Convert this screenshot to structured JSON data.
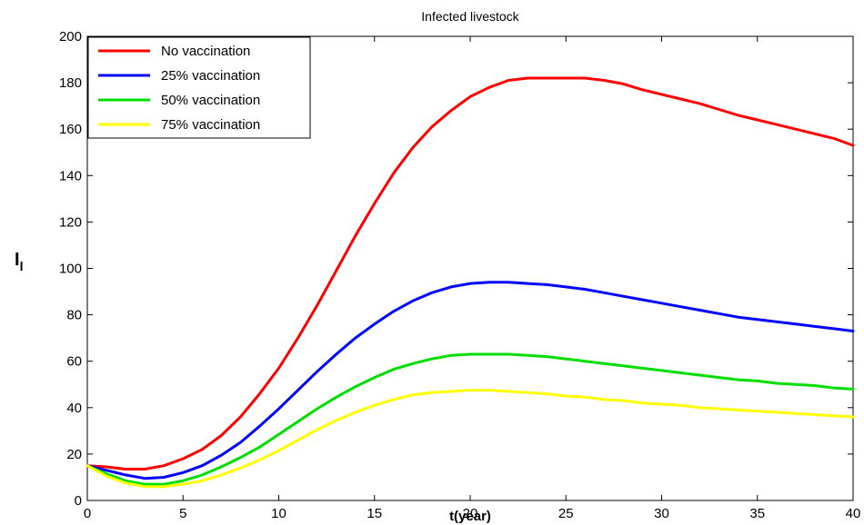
{
  "chart_data": {
    "type": "line",
    "title": "Infected livestock",
    "xlabel": "t(year)",
    "ylabel_main": "I",
    "ylabel_sub": "l",
    "xlim": [
      0,
      40
    ],
    "ylim": [
      0,
      200
    ],
    "xticks": [
      0,
      5,
      10,
      15,
      20,
      25,
      30,
      35,
      40
    ],
    "yticks": [
      0,
      20,
      40,
      60,
      80,
      100,
      120,
      140,
      160,
      180,
      200
    ],
    "grid": false,
    "legend_position": "top-left",
    "x": [
      0,
      1,
      2,
      3,
      4,
      5,
      6,
      7,
      8,
      9,
      10,
      11,
      12,
      13,
      14,
      15,
      16,
      17,
      18,
      19,
      20,
      21,
      22,
      23,
      24,
      25,
      26,
      27,
      28,
      29,
      30,
      31,
      32,
      33,
      34,
      35,
      36,
      37,
      38,
      39,
      40
    ],
    "series": [
      {
        "name": "No vaccination",
        "color": "#ff0000",
        "values": [
          15,
          14.5,
          13.5,
          13.5,
          15,
          18,
          22,
          28,
          36,
          46,
          57,
          70,
          84,
          99,
          114,
          128,
          141,
          152,
          161,
          168,
          174,
          178,
          181,
          182,
          182,
          182,
          182,
          181,
          179.5,
          177,
          175,
          173,
          171,
          168.5,
          166,
          164,
          162,
          160,
          158,
          156,
          153
        ]
      },
      {
        "name": "25% vaccination",
        "color": "#0000ff",
        "values": [
          15,
          13,
          11,
          9.5,
          10,
          12,
          15,
          19.5,
          25,
          32,
          39.5,
          47.5,
          55.5,
          63,
          70,
          76,
          81.5,
          86,
          89.5,
          92,
          93.5,
          94,
          94,
          93.5,
          93,
          92,
          91,
          89.5,
          88,
          86.5,
          85,
          83.5,
          82,
          80.5,
          79,
          78,
          77,
          76,
          75,
          74,
          73
        ]
      },
      {
        "name": "50% vaccination",
        "color": "#00dd00",
        "values": [
          15,
          11.5,
          8.5,
          7,
          7,
          8.5,
          11,
          14.5,
          18.5,
          23,
          28.5,
          34,
          39.5,
          44.5,
          49,
          53,
          56.5,
          59,
          61,
          62.5,
          63,
          63,
          63,
          62.5,
          62,
          61,
          60,
          59,
          58,
          57,
          56,
          55,
          54,
          53,
          52,
          51.5,
          50.5,
          50,
          49.5,
          48.5,
          48
        ]
      },
      {
        "name": "75% vaccination",
        "color": "#ffff00",
        "values": [
          15,
          10.5,
          7.5,
          6,
          6,
          7,
          8.5,
          11,
          14,
          17.5,
          21.5,
          26,
          30.5,
          34.5,
          38,
          41,
          43.5,
          45.5,
          46.5,
          47,
          47.5,
          47.5,
          47,
          46.5,
          46,
          45,
          44.5,
          43.5,
          43,
          42,
          41.5,
          41,
          40,
          39.5,
          39,
          38.5,
          38,
          37.5,
          37,
          36.5,
          36
        ]
      }
    ]
  }
}
